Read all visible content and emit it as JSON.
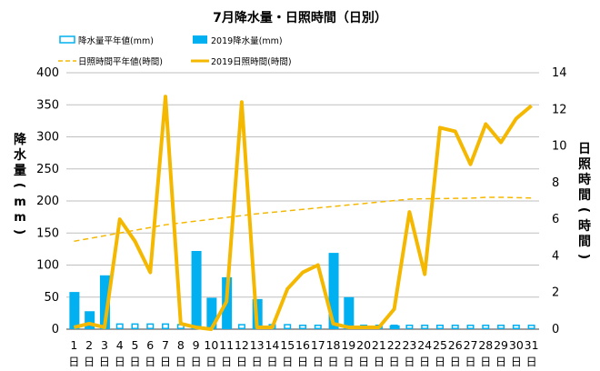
{
  "chart_data": {
    "type": "bar",
    "title": "7月降水量・日照時間（日別）",
    "y_left_label": "降水量(mm)",
    "y_right_label": "日照時間(時間)",
    "x": [
      "1",
      "2",
      "3",
      "4",
      "5",
      "6",
      "7",
      "8",
      "9",
      "10",
      "11",
      "12",
      "13",
      "14",
      "15",
      "16",
      "17",
      "18",
      "19",
      "20",
      "21",
      "22",
      "23",
      "24",
      "25",
      "26",
      "27",
      "28",
      "29",
      "30",
      "31"
    ],
    "x_sublabel": "日",
    "y_left_range": [
      0,
      400
    ],
    "y_left_ticks": [
      "0",
      "50",
      "100",
      "150",
      "200",
      "250",
      "300",
      "350",
      "400"
    ],
    "y_right_range": [
      0,
      14
    ],
    "y_right_ticks": [
      "0",
      "2",
      "4",
      "6",
      "8",
      "10",
      "12",
      "14"
    ],
    "grid": "horizontal",
    "legend_position": "top",
    "legend": [
      {
        "label": "降水量平年値(mm)",
        "kind": "outline-bar",
        "color": "#00b0f0"
      },
      {
        "label": "2019降水量(mm)",
        "kind": "bar",
        "color": "#00b0f0"
      },
      {
        "label": "日照時間平年値(時間)",
        "kind": "dashed-line",
        "color": "#f5b800"
      },
      {
        "label": "2019日照時間(時間)",
        "kind": "line",
        "color": "#f5b800"
      }
    ],
    "series": [
      {
        "name": "降水量平年値(mm)",
        "axis": "left",
        "values": [
          9,
          8,
          8,
          8,
          8,
          8,
          8,
          7,
          7,
          7,
          7,
          7,
          7,
          7,
          7,
          6,
          6,
          6,
          6,
          6,
          6,
          6,
          6,
          6,
          6,
          6,
          6,
          6,
          6,
          6,
          6
        ]
      },
      {
        "name": "2019降水量(mm)",
        "axis": "left",
        "values": [
          58,
          28,
          84,
          0,
          0,
          0,
          0,
          0,
          122,
          49,
          81,
          0,
          47,
          0,
          0,
          0,
          0,
          119,
          50,
          0,
          0,
          6,
          0,
          0,
          0,
          0,
          0,
          0,
          0,
          0,
          0
        ]
      },
      {
        "name": "日照時間平年値(時間)",
        "axis": "right",
        "values": [
          4.8,
          4.95,
          5.1,
          5.25,
          5.4,
          5.55,
          5.7,
          5.8,
          5.9,
          6.0,
          6.1,
          6.2,
          6.3,
          6.38,
          6.46,
          6.54,
          6.62,
          6.7,
          6.78,
          6.86,
          6.94,
          7.02,
          7.1,
          7.12,
          7.13,
          7.14,
          7.15,
          7.2,
          7.2,
          7.18,
          7.16
        ]
      },
      {
        "name": "2019日照時間(時間)",
        "axis": "right",
        "values": [
          0.1,
          0.3,
          0.1,
          6.0,
          4.8,
          3.1,
          12.7,
          0.3,
          0.1,
          0.0,
          1.5,
          12.4,
          0.1,
          0.1,
          2.2,
          3.1,
          3.5,
          0.3,
          0.1,
          0.1,
          0.1,
          1.1,
          6.4,
          3.0,
          11.0,
          10.8,
          9.0,
          11.2,
          10.2,
          11.5,
          12.2
        ]
      }
    ],
    "colors": {
      "bar": "#00b0f0",
      "line": "#f5b800",
      "normal_line": "#f5b800",
      "grid": "#bfbfbf",
      "axis": "#404040"
    }
  }
}
